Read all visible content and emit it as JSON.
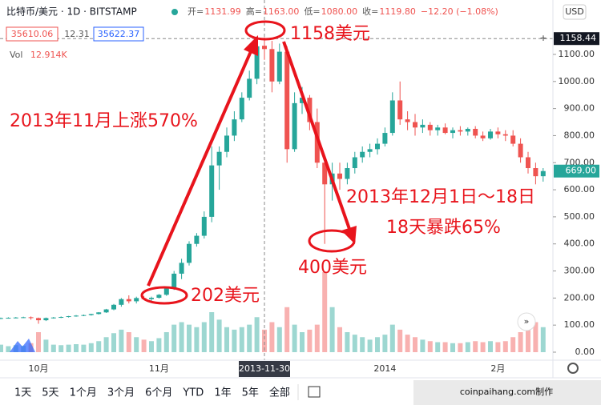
{
  "header": {
    "symbol": "比特币/美元 · 1D · BITSTAMP",
    "currency": "USD",
    "ohlc": [
      {
        "label": "开=",
        "value": "1131.99"
      },
      {
        "label": "高=",
        "value": "1163.00"
      },
      {
        "label": "低=",
        "value": "1080.00"
      },
      {
        "label": "收=",
        "value": "1119.80"
      }
    ],
    "change": "−12.20 (−1.08%)",
    "bid": "35610.06",
    "spread": "12.31",
    "ask": "35622.37",
    "volume_label": "Vol",
    "volume_value": "12.914K"
  },
  "chart_data": {
    "type": "candlestick",
    "categories": [
      null,
      null,
      null,
      null,
      null,
      "10月",
      null,
      null,
      null,
      null,
      null,
      null,
      null,
      null,
      null,
      null,
      null,
      null,
      null,
      null,
      null,
      "11月",
      null,
      null,
      null,
      null,
      null,
      null,
      null,
      null,
      null,
      null,
      null,
      null,
      null,
      "2013-11-30",
      null,
      null,
      null,
      null,
      null,
      null,
      null,
      null,
      null,
      null,
      null,
      null,
      null,
      null,
      null,
      "2014",
      null,
      null,
      null,
      null,
      null,
      null,
      null,
      null,
      null,
      null,
      null,
      null,
      null,
      null,
      "2月",
      null,
      null,
      null,
      null,
      null,
      null
    ],
    "open": [
      124,
      126,
      127,
      128,
      129,
      126,
      118,
      126,
      128,
      130,
      133,
      135,
      137,
      141,
      147,
      158,
      175,
      196,
      188,
      200,
      196,
      201,
      212,
      235,
      290,
      330,
      400,
      430,
      500,
      690,
      740,
      800,
      860,
      940,
      1010,
      1131.99,
      1119.8,
      1000,
      1110,
      750,
      920,
      940,
      850,
      700,
      620,
      660,
      640,
      680,
      720,
      740,
      750,
      770,
      810,
      930,
      860,
      850,
      830,
      840,
      820,
      830,
      810,
      820,
      815,
      825,
      800,
      790,
      815,
      805,
      800,
      770,
      720,
      680,
      650
    ],
    "high": [
      128,
      129,
      130,
      131,
      132,
      128,
      128,
      130,
      132,
      134,
      137,
      139,
      142,
      148,
      160,
      178,
      200,
      210,
      205,
      208,
      205,
      215,
      240,
      300,
      345,
      410,
      440,
      520,
      760,
      760,
      830,
      890,
      960,
      1040,
      1150,
      1163,
      1150,
      1140,
      1130,
      960,
      980,
      950,
      900,
      720,
      700,
      700,
      700,
      740,
      760,
      770,
      790,
      830,
      960,
      1000,
      890,
      880,
      860,
      850,
      840,
      845,
      830,
      835,
      830,
      835,
      815,
      825,
      830,
      820,
      820,
      790,
      740,
      700,
      680
    ],
    "low": [
      122,
      124,
      125,
      126,
      120,
      105,
      115,
      124,
      126,
      128,
      131,
      133,
      135,
      139,
      145,
      155,
      168,
      180,
      180,
      192,
      190,
      198,
      208,
      230,
      270,
      320,
      390,
      420,
      480,
      600,
      720,
      780,
      850,
      930,
      990,
      1080,
      960,
      990,
      700,
      740,
      880,
      820,
      680,
      400,
      560,
      600,
      620,
      660,
      700,
      720,
      730,
      760,
      800,
      840,
      820,
      800,
      810,
      800,
      800,
      805,
      790,
      800,
      800,
      790,
      780,
      785,
      790,
      780,
      760,
      700,
      660,
      620,
      630
    ],
    "close": [
      126,
      127,
      128,
      129,
      126,
      118,
      126,
      128,
      130,
      133,
      135,
      137,
      141,
      147,
      158,
      175,
      196,
      188,
      200,
      196,
      201,
      212,
      235,
      290,
      330,
      400,
      430,
      500,
      690,
      740,
      800,
      860,
      940,
      1010,
      1130,
      1119.8,
      1000,
      1110,
      750,
      920,
      940,
      850,
      700,
      620,
      660,
      640,
      680,
      720,
      740,
      750,
      770,
      810,
      930,
      860,
      850,
      830,
      840,
      820,
      830,
      810,
      820,
      815,
      825,
      800,
      790,
      815,
      805,
      800,
      770,
      720,
      680,
      650,
      669
    ],
    "volume": [
      15,
      12,
      14,
      13,
      18,
      40,
      25,
      15,
      14,
      15,
      16,
      15,
      18,
      22,
      30,
      38,
      45,
      40,
      30,
      25,
      22,
      28,
      40,
      55,
      60,
      55,
      50,
      60,
      80,
      65,
      50,
      45,
      50,
      55,
      70,
      45,
      60,
      50,
      90,
      55,
      40,
      45,
      55,
      160,
      90,
      50,
      40,
      35,
      30,
      25,
      30,
      35,
      55,
      45,
      35,
      30,
      25,
      22,
      20,
      20,
      18,
      18,
      20,
      22,
      20,
      22,
      20,
      22,
      30,
      40,
      45,
      60,
      50
    ],
    "up_color": "#26a69a",
    "down_color": "#ef5350",
    "ylim": [
      0,
      1230
    ],
    "yticks": [
      {
        "value": 0,
        "label": "0.00"
      },
      {
        "value": 100,
        "label": "100.00"
      },
      {
        "value": 200,
        "label": "200.00"
      },
      {
        "value": 300,
        "label": "300.00"
      },
      {
        "value": 400,
        "label": "400.00"
      },
      {
        "value": 500,
        "label": "500.00"
      },
      {
        "value": 600,
        "label": "600.00"
      },
      {
        "value": 700,
        "label": "700.00"
      },
      {
        "value": 800,
        "label": "800.00"
      },
      {
        "value": 900,
        "label": "900.00"
      },
      {
        "value": 1000,
        "label": "1000.00"
      },
      {
        "value": 1100,
        "label": "1100.00"
      }
    ],
    "crosshair_price": 1158.44,
    "last_price": {
      "value": 669,
      "label": "669.00"
    },
    "grid": false,
    "annotations": [
      "2013年11月上涨570%",
      "1158美元",
      "202美元",
      "400美元",
      "2013年12月1日～18日",
      "18天暴跌65%"
    ]
  },
  "toolbar": [
    "1天",
    "5天",
    "1个月",
    "3个月",
    "6个月",
    "YTD",
    "1年",
    "5年",
    "全部"
  ],
  "watermark": "coinpaihang.com制作"
}
